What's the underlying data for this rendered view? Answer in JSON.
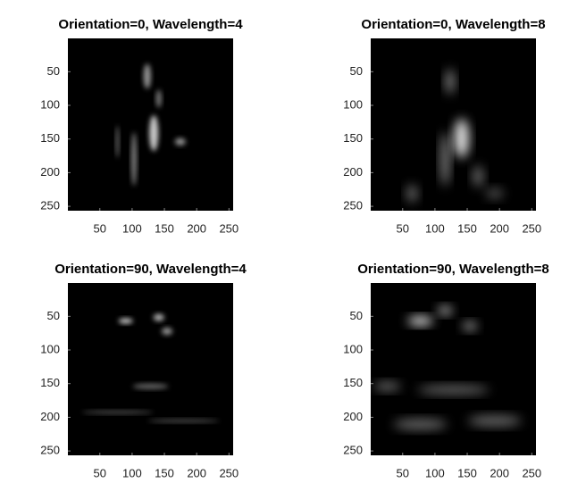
{
  "chart_data": [
    {
      "type": "image",
      "title": "Orientation=0, Wavelength=4",
      "xlim": [
        0.5,
        256.5
      ],
      "ylim": [
        256.5,
        0.5
      ],
      "xticks": [
        50,
        100,
        150,
        200,
        250
      ],
      "yticks": [
        50,
        100,
        150,
        200,
        250
      ],
      "color": "#000000"
    },
    {
      "type": "image",
      "title": "Orientation=0, Wavelength=8",
      "xlim": [
        0.5,
        256.5
      ],
      "ylim": [
        256.5,
        0.5
      ],
      "xticks": [
        50,
        100,
        150,
        200,
        250
      ],
      "yticks": [
        50,
        100,
        150,
        200,
        250
      ],
      "color": "#000000"
    },
    {
      "type": "image",
      "title": "Orientation=90, Wavelength=4",
      "xlim": [
        0.5,
        256.5
      ],
      "ylim": [
        256.5,
        0.5
      ],
      "xticks": [
        50,
        100,
        150,
        200,
        250
      ],
      "yticks": [
        50,
        100,
        150,
        200,
        250
      ],
      "color": "#000000"
    },
    {
      "type": "image",
      "title": "Orientation=90, Wavelength=8",
      "xlim": [
        0.5,
        256.5
      ],
      "ylim": [
        256.5,
        0.5
      ],
      "xticks": [
        50,
        100,
        150,
        200,
        250
      ],
      "yticks": [
        50,
        100,
        150,
        200,
        250
      ],
      "color": "#000000"
    }
  ]
}
